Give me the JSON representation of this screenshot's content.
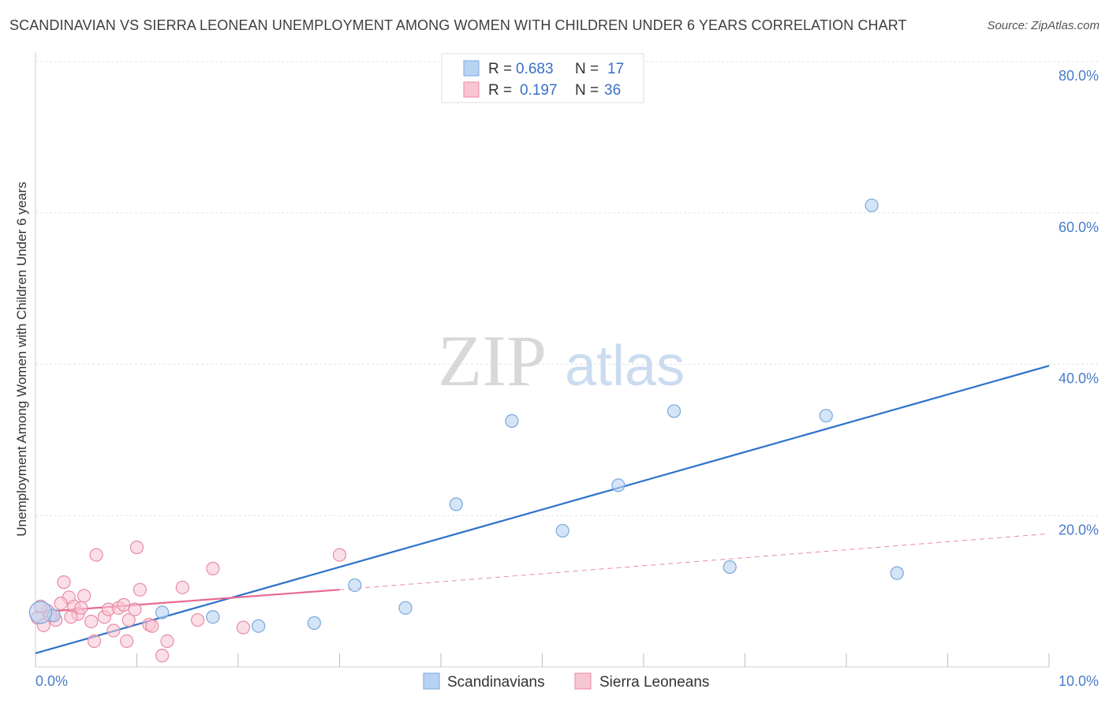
{
  "title": "SCANDINAVIAN VS SIERRA LEONEAN UNEMPLOYMENT AMONG WOMEN WITH CHILDREN UNDER 6 YEARS CORRELATION CHART",
  "source": "Source: ZipAtlas.com",
  "watermark": {
    "zip": "ZIP",
    "atlas": "atlas"
  },
  "legend": {
    "r_label": "R =",
    "n_label": "N =",
    "rows": [
      {
        "r": "0.683",
        "n": "17",
        "color": "#a8c8f0"
      },
      {
        "r": "0.197",
        "n": "36",
        "color": "#f7b9cc"
      }
    ]
  },
  "colors": {
    "scandinavians_fill": "#b8d3f2",
    "scandinavians_stroke": "#7aa6dc",
    "scandinavians_line": "#2f72c9",
    "sierra_fill": "#f8c5d4",
    "sierra_stroke": "#e88aa6",
    "sierra_line": "#e66a92",
    "grid": "#e2e2e2",
    "tick_text": "#4a7cc9"
  },
  "chart_data": {
    "type": "scatter",
    "title": "SCANDINAVIAN VS SIERRA LEONEAN UNEMPLOYMENT AMONG WOMEN WITH CHILDREN UNDER 6 YEARS CORRELATION CHART",
    "xlabel": "",
    "ylabel": "Unemployment Among Women with Children Under 6 years",
    "xlim": [
      0,
      10
    ],
    "ylim": [
      0,
      80
    ],
    "x_tick_labels": [
      "0.0%",
      "10.0%"
    ],
    "y_ticks": [
      20,
      40,
      60,
      80
    ],
    "y_tick_labels": [
      "20.0%",
      "40.0%",
      "60.0%",
      "80.0%"
    ],
    "grid": true,
    "legend_placement": "top-center",
    "series": [
      {
        "name": "Scandinavians",
        "points": [
          [
            0.18,
            6.8
          ],
          [
            1.25,
            7.2
          ],
          [
            1.75,
            6.6
          ],
          [
            2.2,
            5.4
          ],
          [
            2.75,
            5.8
          ],
          [
            3.15,
            10.8
          ],
          [
            3.65,
            7.8
          ],
          [
            4.15,
            21.5
          ],
          [
            4.7,
            32.5
          ],
          [
            5.2,
            18.0
          ],
          [
            5.75,
            24.0
          ],
          [
            6.3,
            33.8
          ],
          [
            6.85,
            13.2
          ],
          [
            7.8,
            33.2
          ],
          [
            8.25,
            61.0
          ],
          [
            8.5,
            12.4
          ],
          [
            0.05,
            7.2
          ]
        ],
        "trend": {
          "x": [
            0.0,
            10.0
          ],
          "y": [
            1.8,
            39.8
          ]
        }
      },
      {
        "name": "Sierra Leoneans",
        "points": [
          [
            0.02,
            6.5
          ],
          [
            0.08,
            5.5
          ],
          [
            0.12,
            7.4
          ],
          [
            0.2,
            6.2
          ],
          [
            0.28,
            11.2
          ],
          [
            0.33,
            9.2
          ],
          [
            0.38,
            8.0
          ],
          [
            0.42,
            7.0
          ],
          [
            0.45,
            7.8
          ],
          [
            0.48,
            9.4
          ],
          [
            0.55,
            6.0
          ],
          [
            0.6,
            14.8
          ],
          [
            0.58,
            3.4
          ],
          [
            0.68,
            6.6
          ],
          [
            0.72,
            7.6
          ],
          [
            0.77,
            4.8
          ],
          [
            0.82,
            7.8
          ],
          [
            0.87,
            8.2
          ],
          [
            0.9,
            3.4
          ],
          [
            0.92,
            6.2
          ],
          [
            0.98,
            7.6
          ],
          [
            1.0,
            15.8
          ],
          [
            1.03,
            10.2
          ],
          [
            1.12,
            5.6
          ],
          [
            1.15,
            5.4
          ],
          [
            1.25,
            1.5
          ],
          [
            1.3,
            3.4
          ],
          [
            1.45,
            10.5
          ],
          [
            1.6,
            6.2
          ],
          [
            1.75,
            13.0
          ],
          [
            2.05,
            5.2
          ],
          [
            3.0,
            14.8
          ],
          [
            0.15,
            6.8
          ],
          [
            0.25,
            8.4
          ],
          [
            0.05,
            8.0
          ],
          [
            0.35,
            6.6
          ]
        ],
        "trend_solid": {
          "x": [
            0.0,
            3.0
          ],
          "y": [
            7.2,
            10.2
          ]
        },
        "trend_dashed": {
          "x": [
            3.0,
            10.0
          ],
          "y": [
            10.2,
            17.6
          ]
        }
      }
    ]
  },
  "bottom_legend": [
    {
      "label": "Scandinavians"
    },
    {
      "label": "Sierra Leoneans"
    }
  ]
}
